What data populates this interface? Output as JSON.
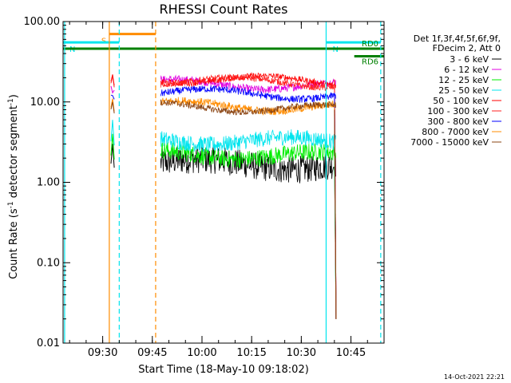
{
  "chart_data": {
    "type": "line",
    "title": "RHESSI Count Rates",
    "xlabel": "Start Time (18-May-10 09:18:02)",
    "ylabel_main": "Count Rate (s",
    "ylabel_sup": "-1",
    "ylabel_tail": " detector segment",
    "ylabel_sup2": "-1",
    "ylabel_end": ")",
    "xlim": [
      "09:18:02",
      "10:55:00"
    ],
    "ylim": [
      0.01,
      100
    ],
    "y_scale": "log",
    "x_ticks": [
      "09:30",
      "09:45",
      "10:00",
      "10:15",
      "10:30",
      "10:45"
    ],
    "y_ticks": [
      "0.01",
      "0.10",
      "1.00",
      "10.00",
      "100.00"
    ],
    "legend_header": [
      "Det 1f,3f,4f,5f,6f,9f,",
      "FDecim 2, Att 0"
    ],
    "series": [
      {
        "name": "3 - 6 keV",
        "color": "#000000",
        "level": 1.9,
        "noise": 0.35,
        "pre_spike": 3.0,
        "post_spike": 2.5
      },
      {
        "name": "6 - 12 keV",
        "color": "#e000e0",
        "level": 17.5,
        "noise": 0.1,
        "pre_spike": 13.0,
        "post_spike": 18.0
      },
      {
        "name": "12 - 25 keV",
        "color": "#00ee00",
        "level": 2.4,
        "noise": 0.22,
        "pre_spike": 4.0,
        "post_spike": 2.6
      },
      {
        "name": "25 - 50 keV",
        "color": "#00e5ee",
        "level": 3.6,
        "noise": 0.2,
        "pre_spike": 6.0,
        "post_spike": 3.2
      },
      {
        "name": "50 - 100 keV",
        "color": "#ff0000",
        "level": 20.0,
        "noise": 0.08,
        "pre_spike": 22.0,
        "post_spike": 19.0
      },
      {
        "name": "100 - 300 keV",
        "color": "#ff2020",
        "level": 19.0,
        "noise": 0.08,
        "pre_spike": 21.0,
        "post_spike": 18.0
      },
      {
        "name": "300 - 800 keV",
        "color": "#0000ff",
        "level": 13.5,
        "noise": 0.09,
        "pre_spike": 12.0,
        "post_spike": 12.5
      },
      {
        "name": "800 - 7000 keV",
        "color": "#ff8c00",
        "level": 9.5,
        "noise": 0.1,
        "pre_spike": 11.0,
        "post_spike": 8.5
      },
      {
        "name": "7000 - 15000 keV",
        "color": "#8b4513",
        "level": 9.0,
        "noise": 0.08,
        "pre_spike": 10.0,
        "post_spike": 8.0
      }
    ],
    "data_segments": [
      {
        "start": "09:32:30",
        "end": "09:33:30"
      },
      {
        "start": "09:47:30",
        "end": "10:40:30"
      }
    ],
    "flags": [
      {
        "label": "S",
        "color": "#ff8c00",
        "value": 70,
        "start": "09:32:00",
        "end": "09:46:00"
      },
      {
        "label": "N",
        "color": "#00e5ee",
        "value": 55,
        "start": "09:18:02",
        "end": "09:35:00"
      },
      {
        "label": "N",
        "color": "#00e5ee",
        "value": 55,
        "start": "10:37:30",
        "end": "10:54:00"
      },
      {
        "label": "RD0",
        "color": "#008000",
        "value": 46,
        "start": "09:18:02",
        "end": "10:55:00"
      },
      {
        "label": "RD6",
        "color": "#008000",
        "value": 37,
        "start": "10:46:00",
        "end": "10:55:00"
      }
    ],
    "vlines": [
      {
        "time": "09:18:30",
        "color": "#00e5ee",
        "dash": false
      },
      {
        "time": "09:32:00",
        "color": "#ff8c00",
        "dash": false
      },
      {
        "time": "09:35:00",
        "color": "#00e5ee",
        "dash": true
      },
      {
        "time": "09:46:00",
        "color": "#ff8c00",
        "dash": true
      },
      {
        "time": "10:37:30",
        "color": "#00e5ee",
        "dash": false
      },
      {
        "time": "10:54:00",
        "color": "#00e5ee",
        "dash": true
      }
    ],
    "grid": false
  },
  "footer": {
    "timestamp": "14-Oct-2021 22:21"
  }
}
